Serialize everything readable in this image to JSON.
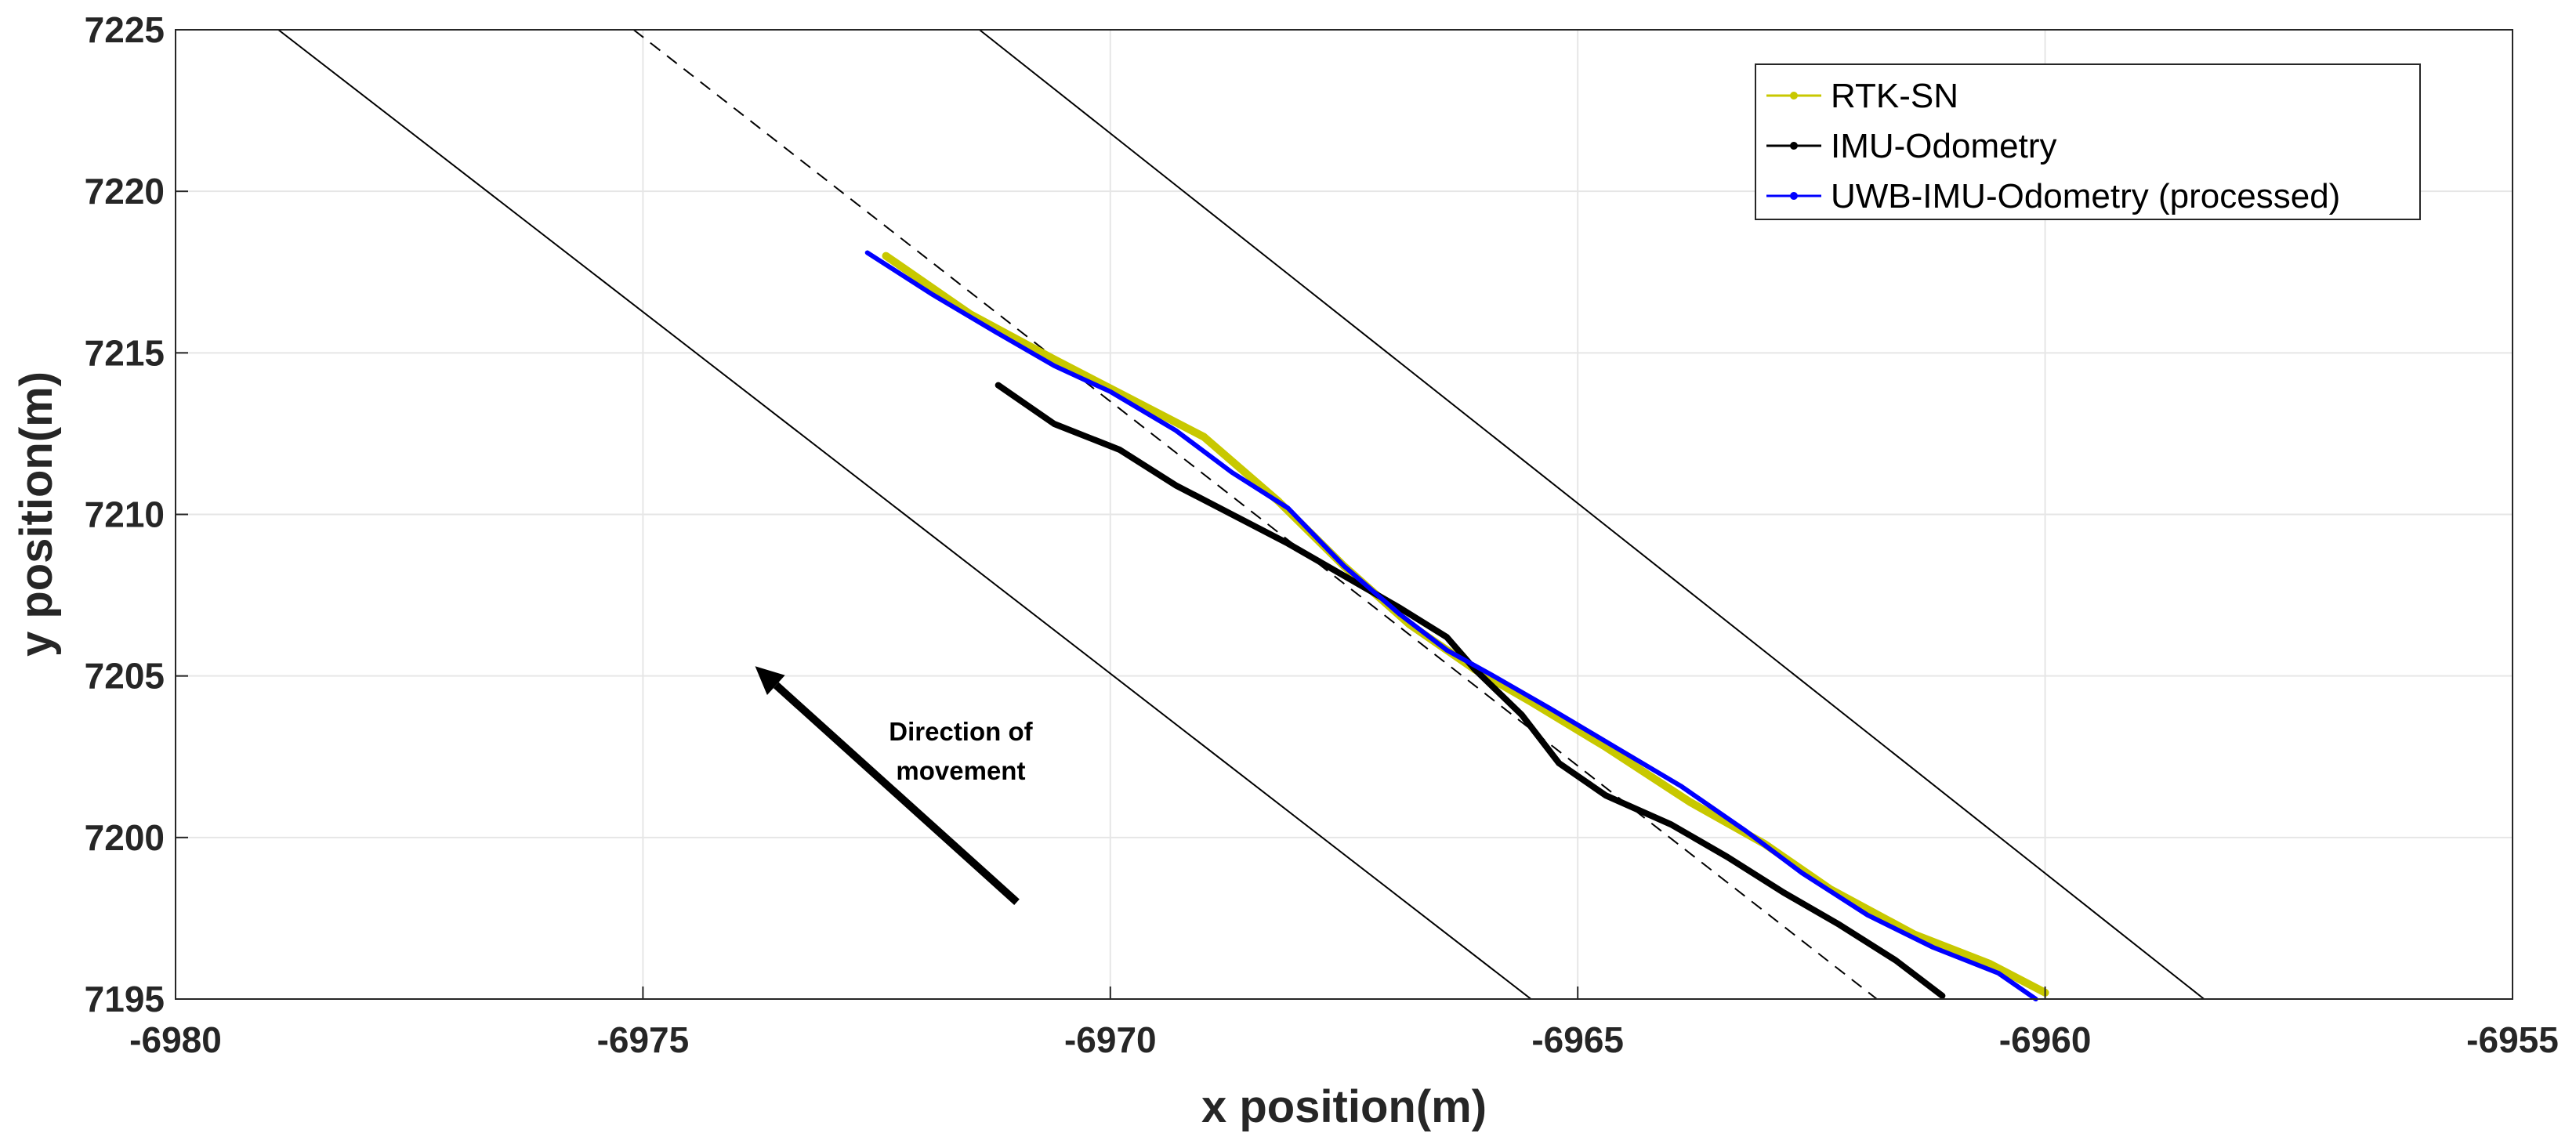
{
  "chart_data": {
    "type": "line",
    "title": "",
    "xlabel": "x position(m)",
    "ylabel": "y position(m)",
    "xlim": [
      -6980,
      -6955
    ],
    "ylim": [
      7195,
      7225
    ],
    "xticks": [
      -6980,
      -6975,
      -6970,
      -6965,
      -6960,
      -6955
    ],
    "yticks": [
      7195,
      7200,
      7205,
      7210,
      7215,
      7220,
      7225
    ],
    "grid": true,
    "legend_position": "top-right",
    "series": [
      {
        "name": "RTK-SN",
        "color": "#c8c800",
        "points": [
          [
            -6972.4,
            7218.0
          ],
          [
            -6971.5,
            7216.2
          ],
          [
            -6970.6,
            7214.8
          ],
          [
            -6969.8,
            7213.6
          ],
          [
            -6969.0,
            7212.4
          ],
          [
            -6968.2,
            7210.4
          ],
          [
            -6967.5,
            7208.4
          ],
          [
            -6966.8,
            7206.6
          ],
          [
            -6966.1,
            7205.2
          ],
          [
            -6965.5,
            7204.2
          ],
          [
            -6964.7,
            7202.8
          ],
          [
            -6963.8,
            7201.1
          ],
          [
            -6963.0,
            7199.8
          ],
          [
            -6962.3,
            7198.4
          ],
          [
            -6961.4,
            7197.0
          ],
          [
            -6960.6,
            7196.1
          ],
          [
            -6960.0,
            7195.2
          ]
        ]
      },
      {
        "name": "IMU-Odometry",
        "color": "#000000",
        "points": [
          [
            -6971.2,
            7214.0
          ],
          [
            -6970.6,
            7212.8
          ],
          [
            -6969.9,
            7212.0
          ],
          [
            -6969.3,
            7210.9
          ],
          [
            -6968.7,
            7210.0
          ],
          [
            -6968.1,
            7209.1
          ],
          [
            -6967.5,
            7208.1
          ],
          [
            -6966.9,
            7207.1
          ],
          [
            -6966.4,
            7206.2
          ],
          [
            -6966.1,
            7205.2
          ],
          [
            -6965.6,
            7203.8
          ],
          [
            -6965.2,
            7202.3
          ],
          [
            -6964.7,
            7201.3
          ],
          [
            -6964.0,
            7200.4
          ],
          [
            -6963.4,
            7199.4
          ],
          [
            -6962.8,
            7198.3
          ],
          [
            -6962.2,
            7197.3
          ],
          [
            -6961.6,
            7196.2
          ],
          [
            -6961.1,
            7195.1
          ]
        ]
      },
      {
        "name": "UWB-IMU-Odometry (processed)",
        "color": "#0000ff",
        "points": [
          [
            -6972.6,
            7218.1
          ],
          [
            -6971.9,
            7216.8
          ],
          [
            -6971.2,
            7215.6
          ],
          [
            -6970.6,
            7214.6
          ],
          [
            -6970.0,
            7213.8
          ],
          [
            -6969.3,
            7212.6
          ],
          [
            -6968.7,
            7211.3
          ],
          [
            -6968.1,
            7210.2
          ],
          [
            -6967.5,
            7208.4
          ],
          [
            -6966.9,
            7206.9
          ],
          [
            -6966.4,
            7205.8
          ],
          [
            -6965.9,
            7205.0
          ],
          [
            -6965.3,
            7204.0
          ],
          [
            -6964.6,
            7202.8
          ],
          [
            -6963.9,
            7201.6
          ],
          [
            -6963.2,
            7200.2
          ],
          [
            -6962.6,
            7198.9
          ],
          [
            -6961.9,
            7197.6
          ],
          [
            -6961.2,
            7196.6
          ],
          [
            -6960.5,
            7195.8
          ],
          [
            -6960.1,
            7195.0
          ]
        ]
      }
    ],
    "reference_lines": [
      {
        "name": "lane-boundary-left",
        "style": "solid",
        "points": [
          [
            -6978.9,
            7225.0
          ],
          [
            -6965.5,
            7195.0
          ]
        ]
      },
      {
        "name": "lane-centerline",
        "style": "dashed",
        "points": [
          [
            -6975.1,
            7225.0
          ],
          [
            -6961.8,
            7195.0
          ]
        ]
      },
      {
        "name": "lane-boundary-right",
        "style": "solid",
        "points": [
          [
            -6971.4,
            7225.0
          ],
          [
            -6958.3,
            7195.0
          ]
        ]
      }
    ],
    "annotation": {
      "text_lines": [
        "Direction of",
        "movement"
      ],
      "arrow_from": [
        -6971.0,
        7198.0
      ],
      "arrow_to": [
        -6973.8,
        7205.3
      ],
      "text_anchor": [
        -6971.6,
        7203.0
      ]
    }
  }
}
